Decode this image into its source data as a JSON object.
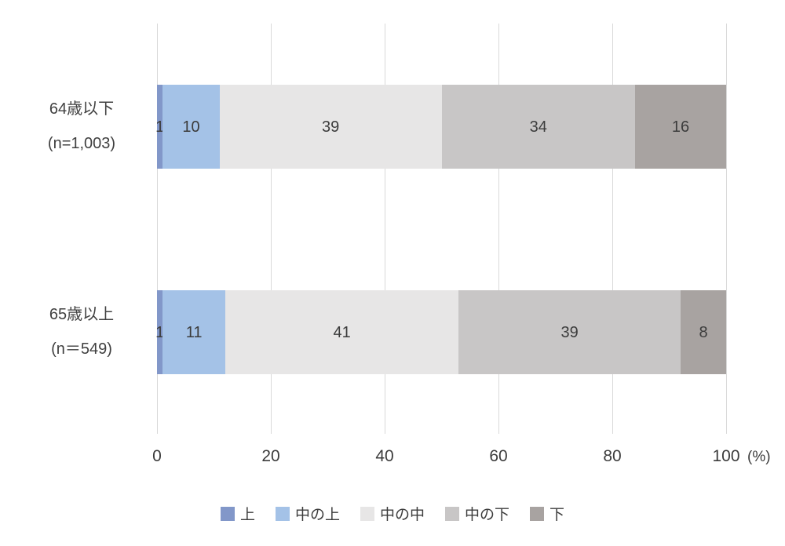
{
  "chart_data": {
    "type": "bar",
    "orientation": "horizontal",
    "stacked": true,
    "stacked_total": 100,
    "unit": "%",
    "title": "",
    "categories": [
      {
        "label": "64歳以下",
        "sublabel": "(n=1,003)"
      },
      {
        "label": "65歳以上",
        "sublabel": "(n＝549)"
      }
    ],
    "series": [
      {
        "name": "上",
        "color": "#8297c9",
        "values": [
          1,
          1
        ]
      },
      {
        "name": "中の上",
        "color": "#a4c2e7",
        "values": [
          10,
          11
        ]
      },
      {
        "name": "中の中",
        "color": "#e7e6e6",
        "values": [
          39,
          41
        ]
      },
      {
        "name": "中の下",
        "color": "#c8c6c6",
        "values": [
          34,
          39
        ]
      },
      {
        "name": "下",
        "color": "#a8a3a1",
        "values": [
          16,
          8
        ]
      }
    ],
    "x_ticks": [
      0,
      20,
      40,
      60,
      80,
      100
    ],
    "x_axis_unit_label": "(%)",
    "xlim": [
      0,
      100
    ],
    "grid": true,
    "gridline_color": "#d9d9d9",
    "label_color": "#3c3c3c",
    "legend_position": "bottom",
    "legend_labels": [
      "上",
      "中の上",
      "中の中",
      "中の下",
      "下"
    ]
  }
}
